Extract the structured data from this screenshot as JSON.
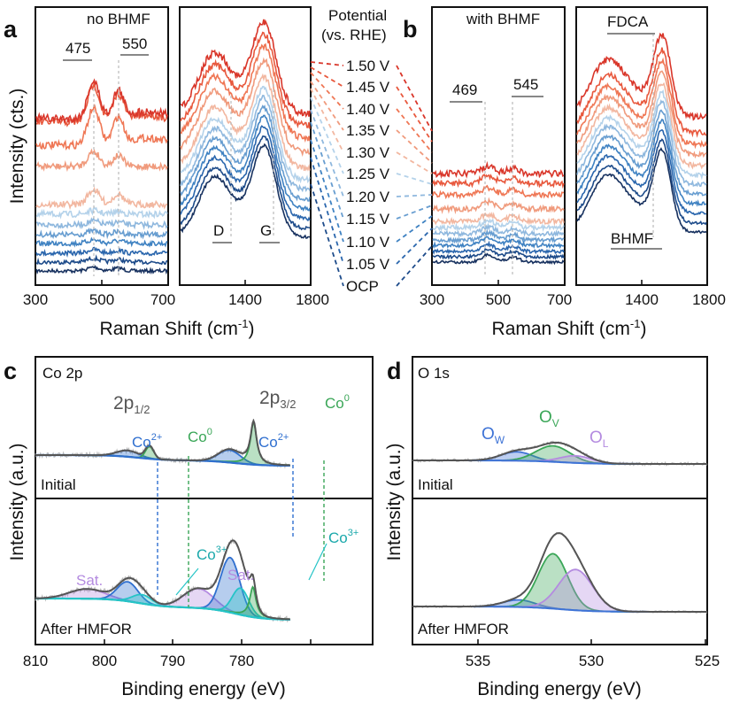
{
  "colors": {
    "potentials": [
      "#17315f",
      "#1d4b8a",
      "#2a66ad",
      "#3f82c2",
      "#679dd0",
      "#8fb8de",
      "#b4d2ea",
      "#f2b7a0",
      "#f09a7c",
      "#ef7755",
      "#e8583d",
      "#d9362a"
    ],
    "co0": "#3aa657",
    "co2": "#2f6fcf",
    "co3": "#25c4c7",
    "sat": "#b48be0",
    "ow": "#3e73d6",
    "ov": "#3aa657",
    "ol": "#b48be0",
    "envelope": "#555555",
    "raw": "#bbbbbb"
  },
  "panels": {
    "a": "a",
    "b": "b",
    "c": "c",
    "d": "d"
  },
  "top": {
    "ylabel": "Intensity (cts.)",
    "xlabel": "Raman Shift (cm",
    "xlabel_sup": "-1",
    "xlabel_end": ")",
    "a_title": "no BHMF",
    "b_title": "with BHMF",
    "legend_title_1": "Potential",
    "legend_title_2": "(vs. RHE)",
    "potentials": [
      "OCP",
      "1.05 V",
      "1.10 V",
      "1.15 V",
      "1.20 V",
      "1.25 V",
      "1.30 V",
      "1.35 V",
      "1.40 V",
      "1.45 V",
      "1.50 V"
    ],
    "a_peak1": "475",
    "a_peak2": "550",
    "a_D": "D",
    "a_G": "G",
    "b_peak1": "469",
    "b_peak2": "545",
    "b_fdca": "FDCA",
    "b_bhmf": "BHMF",
    "low_ticks": [
      "300",
      "500",
      "700"
    ],
    "high_ticks": [
      "1400",
      "1800"
    ]
  },
  "c": {
    "title": "Co 2p",
    "ylabel": "Intensity (a.u.)",
    "xlabel": "Binding energy (eV)",
    "label_initial": "Initial",
    "label_after": "After HMFOR",
    "p12_main": "2p",
    "p12_sub": "1/2",
    "p32_main": "2p",
    "p32_sub": "3/2",
    "co2_main": "Co",
    "co2_sup": "2+",
    "co0_main": "Co",
    "co0_sup": "0",
    "co3_main": "Co",
    "co3_sup": "3+",
    "sat": "Sat.",
    "ticks": [
      "810",
      "800",
      "790",
      "780"
    ]
  },
  "d": {
    "title": "O 1s",
    "ylabel": "Intensity (a.u.)",
    "xlabel": "Binding energy (eV)",
    "label_initial": "Initial",
    "label_after": "After HMFOR",
    "ow_main": "O",
    "ow_sub": "W",
    "ov_main": "O",
    "ov_sub": "V",
    "ol_main": "O",
    "ol_sub": "L",
    "ticks": [
      "535",
      "530",
      "525"
    ]
  },
  "chart_data": [
    {
      "panel": "a-left",
      "type": "line",
      "x_range": [
        300,
        700
      ],
      "series_labels": [
        "OCP",
        "1.05 V",
        "1.10 V",
        "1.15 V",
        "1.20 V",
        "1.25 V",
        "1.30 V",
        "1.35 V",
        "1.40 V",
        "1.45 V",
        "1.50 V"
      ],
      "peaks": [
        475,
        550
      ],
      "ylabel": "Intensity (cts.)",
      "xlabel": "Raman Shift (cm-1)"
    },
    {
      "panel": "a-right",
      "type": "line",
      "x_range": [
        1200,
        1800
      ],
      "bands": {
        "D": 1350,
        "G": 1590
      }
    },
    {
      "panel": "b-left",
      "type": "line",
      "x_range": [
        300,
        700
      ],
      "peaks": [
        469,
        545
      ]
    },
    {
      "panel": "b-right",
      "type": "line",
      "x_range": [
        1200,
        1800
      ],
      "annotations": [
        "FDCA",
        "BHMF"
      ]
    },
    {
      "panel": "c",
      "type": "line",
      "x_range": [
        810,
        773
      ],
      "initial_components": [
        {
          "name": "Co2+ 2p1/2",
          "center": 796.6
        },
        {
          "name": "Co0 2p1/2",
          "center": 793.4
        },
        {
          "name": "Co2+ 2p3/2",
          "center": 781.8
        },
        {
          "name": "Co0 2p3/2",
          "center": 778.3
        }
      ],
      "after_components": [
        {
          "name": "Sat.",
          "center": 802.5
        },
        {
          "name": "Co2+ 2p1/2",
          "center": 796.6
        },
        {
          "name": "Co3+ 2p1/2",
          "center": 794.5
        },
        {
          "name": "Sat.",
          "center": 786.3
        },
        {
          "name": "Co2+ 2p3/2",
          "center": 781.7
        },
        {
          "name": "Co3+ 2p3/2",
          "center": 780.2
        },
        {
          "name": "Co0 2p3/2",
          "center": 778.4
        }
      ],
      "xlabel": "Binding energy (eV)",
      "ylabel": "Intensity (a.u.)"
    },
    {
      "panel": "d",
      "type": "line",
      "x_range": [
        538,
        525
      ],
      "initial_components": [
        {
          "name": "OW",
          "center": 533.4
        },
        {
          "name": "OV",
          "center": 531.8
        },
        {
          "name": "OL",
          "center": 530.8
        }
      ],
      "after_components": [
        {
          "name": "OW",
          "center": 533.3
        },
        {
          "name": "OV",
          "center": 531.8
        },
        {
          "name": "OL",
          "center": 530.8
        }
      ],
      "xlabel": "Binding energy (eV)",
      "ylabel": "Intensity (a.u.)"
    }
  ]
}
